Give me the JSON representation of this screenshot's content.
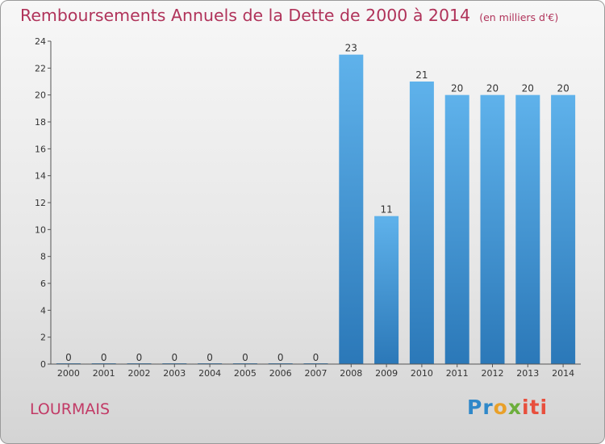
{
  "chart_data": {
    "type": "bar",
    "title": "Remboursements Annuels de la Dette de 2000 à 2014",
    "unit": "(en milliers d'€)",
    "categories": [
      "2000",
      "2001",
      "2002",
      "2003",
      "2004",
      "2005",
      "2006",
      "2007",
      "2008",
      "2009",
      "2010",
      "2011",
      "2012",
      "2013",
      "2014"
    ],
    "values": [
      0,
      0,
      0,
      0,
      0,
      0,
      0,
      0,
      23,
      11,
      21,
      20,
      20,
      20,
      20
    ],
    "ylim": [
      0,
      24
    ],
    "yticks": [
      0,
      2,
      4,
      6,
      8,
      10,
      12,
      14,
      16,
      18,
      20,
      22,
      24
    ],
    "grid": false,
    "bar_color": "#5aaee6"
  },
  "commune": "LOURMAIS",
  "logo": {
    "p1": "Pr",
    "p2": "o",
    "p3": "x",
    "p4": "iti"
  }
}
